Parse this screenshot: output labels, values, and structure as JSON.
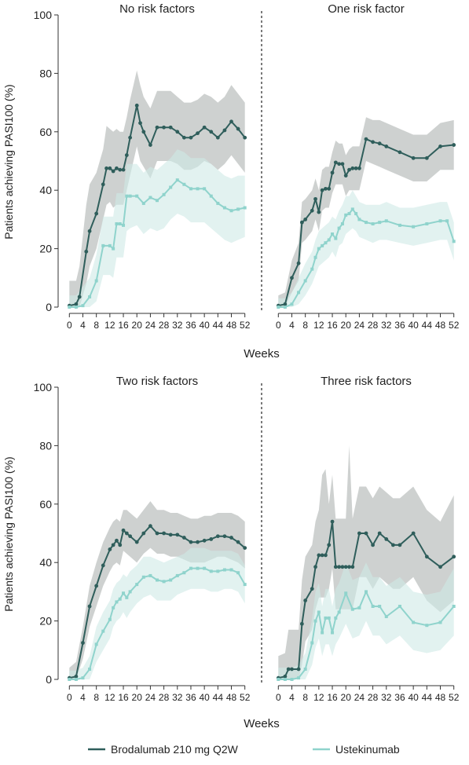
{
  "figure": {
    "ylabel": "Patients achieving PASI100 (%)",
    "xlabel": "Weeks",
    "legend": {
      "placement": "bottom-center",
      "brodalumab": "Brodalumab 210 mg Q2W",
      "ustekinumab": "Ustekinumab"
    },
    "colors": {
      "brodalumab": "#2f5e5b",
      "brodalumab_band": "#a5abaa",
      "ustekinumab": "#8fd3cc",
      "ustekinumab_band": "#cfe9e6",
      "divider": "#333333"
    },
    "y_ticks": [
      0,
      20,
      40,
      60,
      80,
      100
    ],
    "x_ticks": [
      0,
      4,
      8,
      12,
      16,
      20,
      24,
      28,
      32,
      36,
      40,
      44,
      48,
      52
    ]
  },
  "chart_data": [
    {
      "type": "line",
      "title": "No risk factors",
      "xlim": [
        -1,
        53
      ],
      "ylim": [
        0,
        100
      ],
      "series": [
        {
          "name": "Brodalumab 210 mg Q2W",
          "x": [
            0,
            2,
            3,
            5,
            6,
            8,
            10,
            11,
            12,
            13,
            14,
            15,
            16,
            17,
            18,
            20,
            21,
            22,
            24,
            26,
            28,
            30,
            32,
            34,
            36,
            38,
            40,
            42,
            44,
            46,
            48,
            50,
            52
          ],
          "y": [
            0.5,
            1,
            3.5,
            19,
            26,
            32,
            42,
            47.5,
            47.5,
            46.5,
            47.5,
            47,
            47,
            52,
            58,
            69,
            63,
            60,
            55.5,
            61.5,
            61.5,
            61.5,
            60,
            58,
            58,
            59.5,
            61.5,
            60,
            58,
            60.5,
            63.5,
            61,
            58
          ],
          "lower": [
            0,
            0,
            0,
            8,
            14,
            20,
            30,
            35,
            36,
            34,
            35,
            35,
            35,
            40,
            45,
            55,
            50,
            48,
            44,
            50,
            50,
            50,
            49,
            47,
            47,
            48,
            50,
            49,
            47,
            49,
            52,
            49,
            46
          ],
          "upper": [
            9,
            9,
            14,
            35,
            42,
            46,
            54,
            62,
            61,
            60,
            61,
            60,
            60,
            65,
            71,
            81,
            76,
            72,
            68,
            74,
            74,
            74,
            72,
            70,
            70,
            71,
            73,
            72,
            70,
            72,
            76,
            73,
            70
          ]
        },
        {
          "name": "Ustekinumab",
          "x": [
            0,
            2,
            4,
            6,
            8,
            10,
            12,
            13,
            14,
            15,
            16,
            17,
            18,
            20,
            22,
            24,
            26,
            28,
            30,
            32,
            34,
            36,
            38,
            40,
            42,
            44,
            46,
            48,
            50,
            52
          ],
          "y": [
            0,
            0,
            0.5,
            3.5,
            9,
            21,
            21,
            20,
            28.5,
            28.5,
            28,
            38,
            38,
            38,
            35.5,
            37.5,
            36.5,
            38.5,
            41,
            43.5,
            42,
            40.5,
            40.5,
            40.5,
            38,
            35.5,
            34,
            33,
            33.5,
            34
          ],
          "lower": [
            0,
            0,
            0,
            0,
            2,
            11,
            11,
            10,
            17,
            17,
            17,
            26,
            27,
            28,
            25,
            27,
            26,
            27,
            30,
            32,
            31,
            29,
            29,
            29,
            27,
            25,
            23,
            22,
            23,
            24
          ],
          "upper": [
            4,
            4,
            7,
            10,
            18,
            31,
            31,
            31,
            39,
            39,
            39,
            49,
            49,
            49,
            46,
            48,
            47,
            49,
            51,
            54,
            53,
            51,
            51,
            51,
            49,
            47,
            45,
            44,
            45,
            45
          ]
        }
      ]
    },
    {
      "type": "line",
      "title": "One risk factor",
      "xlim": [
        -1,
        53
      ],
      "ylim": [
        0,
        100
      ],
      "series": [
        {
          "name": "Brodalumab 210 mg Q2W",
          "x": [
            0,
            2,
            4,
            6,
            7,
            8,
            10,
            11,
            12,
            13,
            14,
            15,
            16,
            17,
            18,
            19,
            20,
            21,
            22,
            23,
            24,
            26,
            28,
            30,
            32,
            36,
            40,
            44,
            48,
            52
          ],
          "y": [
            0.5,
            1,
            10,
            15,
            29,
            30,
            33,
            37,
            32.5,
            40,
            40.5,
            40.5,
            46,
            49.5,
            49,
            49,
            45,
            47,
            47.5,
            47.5,
            47.5,
            57.5,
            56.5,
            56,
            55,
            53,
            51,
            51,
            55,
            55.5
          ],
          "lower": [
            0,
            0,
            5,
            9,
            22,
            23,
            26,
            30,
            26,
            33,
            34,
            34,
            39,
            42,
            42,
            42,
            38,
            40,
            40,
            40,
            40,
            50,
            49,
            48,
            47,
            45,
            43,
            43,
            47,
            47
          ],
          "upper": [
            4,
            5,
            16,
            22,
            36,
            37,
            40,
            44,
            40,
            47,
            48,
            48,
            53,
            57,
            56,
            56,
            52,
            54,
            55,
            55,
            55,
            65,
            64,
            64,
            63,
            61,
            59,
            59,
            63,
            64
          ]
        },
        {
          "name": "Ustekinumab",
          "x": [
            0,
            2,
            4,
            6,
            8,
            10,
            11,
            12,
            13,
            14,
            15,
            16,
            17,
            18,
            19,
            20,
            21,
            22,
            23,
            24,
            26,
            28,
            30,
            32,
            36,
            40,
            44,
            48,
            50,
            52
          ],
          "y": [
            0,
            0,
            1,
            5,
            9,
            13,
            17,
            20,
            21,
            22,
            23,
            25,
            23.5,
            27,
            28.5,
            31.5,
            32,
            33.5,
            32,
            30,
            29,
            28.5,
            29,
            29.5,
            28,
            27.5,
            28.5,
            29.5,
            29.5,
            22.5
          ],
          "lower": [
            0,
            0,
            0,
            1,
            4,
            8,
            11,
            14,
            15,
            16,
            17,
            19,
            17,
            21,
            22,
            25,
            26,
            27,
            26,
            24,
            23,
            22,
            23,
            23,
            22,
            21,
            22,
            23,
            23,
            16
          ],
          "upper": [
            3,
            3,
            5,
            10,
            15,
            19,
            23,
            26,
            27,
            28,
            29,
            31,
            30,
            33,
            35,
            38,
            38,
            40,
            38,
            36,
            35,
            35,
            35,
            36,
            34,
            34,
            35,
            36,
            36,
            29
          ]
        }
      ]
    },
    {
      "type": "line",
      "title": "Two risk factors",
      "xlim": [
        -1,
        53
      ],
      "ylim": [
        0,
        100
      ],
      "series": [
        {
          "name": "Brodalumab 210 mg Q2W",
          "x": [
            0,
            2,
            4,
            6,
            8,
            10,
            12,
            13,
            14,
            15,
            16,
            17,
            18,
            20,
            22,
            24,
            26,
            28,
            30,
            32,
            34,
            36,
            38,
            40,
            42,
            44,
            46,
            48,
            50,
            52
          ],
          "y": [
            0.5,
            1,
            12.5,
            25,
            32,
            39,
            44.5,
            46,
            47.5,
            46,
            51,
            50,
            49,
            47,
            50,
            52.5,
            50,
            50,
            49.5,
            49.5,
            48.5,
            47,
            47,
            47.5,
            48,
            49,
            49,
            48.5,
            47,
            45
          ],
          "lower": [
            0,
            0,
            7,
            18,
            25,
            32,
            37,
            39,
            40,
            39,
            44,
            43,
            42,
            40,
            43,
            45,
            43,
            43,
            42,
            42,
            41,
            40,
            40,
            40,
            41,
            42,
            42,
            41,
            40,
            38
          ],
          "upper": [
            4,
            6,
            18,
            32,
            40,
            47,
            52,
            54,
            55,
            54,
            58,
            58,
            57,
            55,
            58,
            61,
            58,
            58,
            57,
            57,
            56,
            55,
            55,
            56,
            56,
            57,
            57,
            57,
            56,
            54
          ]
        },
        {
          "name": "Ustekinumab",
          "x": [
            0,
            2,
            4,
            6,
            8,
            10,
            12,
            13,
            14,
            15,
            16,
            17,
            18,
            20,
            22,
            24,
            26,
            28,
            30,
            32,
            34,
            36,
            38,
            40,
            42,
            44,
            46,
            48,
            50,
            52
          ],
          "y": [
            0,
            0,
            0.5,
            3.5,
            12,
            16.5,
            20.5,
            24.5,
            26.5,
            27.5,
            29.5,
            28,
            30,
            32.5,
            35,
            35.5,
            34,
            33.5,
            34,
            35.5,
            36.5,
            38,
            38,
            38,
            37,
            37,
            37.5,
            37.5,
            36.5,
            32.5
          ],
          "lower": [
            0,
            0,
            0,
            0,
            6,
            10,
            14,
            18,
            20,
            21,
            23,
            21,
            23,
            26,
            28,
            29,
            27,
            27,
            27,
            29,
            30,
            31,
            31,
            31,
            30,
            30,
            31,
            31,
            30,
            26
          ],
          "upper": [
            3,
            3,
            4,
            8,
            18,
            23,
            27,
            31,
            33,
            34,
            36,
            35,
            37,
            39,
            42,
            42,
            41,
            40,
            41,
            42,
            43,
            45,
            45,
            45,
            44,
            44,
            44,
            44,
            43,
            39
          ]
        }
      ]
    },
    {
      "type": "line",
      "title": "Three risk factors",
      "xlim": [
        -1,
        53
      ],
      "ylim": [
        0,
        100
      ],
      "series": [
        {
          "name": "Brodalumab 210 mg Q2W",
          "x": [
            0,
            2,
            3,
            4,
            6,
            7,
            8,
            10,
            11,
            12,
            13,
            14,
            15,
            16,
            17,
            18,
            19,
            20,
            21,
            22,
            24,
            26,
            28,
            30,
            32,
            34,
            36,
            40,
            44,
            48,
            52
          ],
          "y": [
            0.5,
            1,
            3.5,
            3.5,
            3.5,
            19,
            27,
            31,
            38.5,
            42.5,
            42.5,
            42.5,
            46,
            54,
            38.5,
            38.5,
            38.5,
            38.5,
            38.5,
            38.5,
            50,
            50,
            46,
            50,
            48,
            46,
            46,
            50,
            42,
            38.5,
            42
          ],
          "lower": [
            0,
            0,
            0,
            0,
            0,
            5,
            13,
            17,
            24,
            28,
            28,
            28,
            31,
            38,
            24,
            24,
            24,
            24,
            24,
            24,
            35,
            35,
            31,
            35,
            33,
            31,
            31,
            35,
            27,
            23,
            27
          ],
          "upper": [
            8,
            9,
            17,
            17,
            17,
            34,
            42,
            46,
            54,
            58,
            70,
            72,
            60,
            70,
            55,
            55,
            55,
            55,
            80,
            55,
            66,
            66,
            62,
            66,
            64,
            62,
            62,
            66,
            58,
            54,
            63
          ]
        },
        {
          "name": "Ustekinumab",
          "x": [
            0,
            2,
            4,
            6,
            8,
            10,
            11,
            12,
            13,
            14,
            15,
            16,
            17,
            18,
            20,
            22,
            24,
            26,
            28,
            30,
            32,
            36,
            40,
            44,
            48,
            52
          ],
          "y": [
            0,
            0,
            0,
            0.5,
            3.5,
            12.5,
            20,
            23,
            16,
            21,
            21,
            16,
            21,
            23,
            29.5,
            24,
            24.5,
            30,
            25,
            25,
            21.5,
            25,
            19.5,
            18.5,
            19.5,
            25
          ],
          "lower": [
            0,
            0,
            0,
            0,
            0,
            5,
            11,
            14,
            8,
            12,
            12,
            8,
            12,
            14,
            19,
            14,
            15,
            20,
            15,
            15,
            12,
            15,
            10,
            9,
            10,
            15
          ],
          "upper": [
            4,
            4,
            4,
            5,
            9,
            21,
            30,
            33,
            25,
            31,
            31,
            25,
            31,
            33,
            40,
            34,
            35,
            40,
            35,
            35,
            32,
            35,
            30,
            29,
            30,
            38
          ]
        }
      ]
    }
  ]
}
